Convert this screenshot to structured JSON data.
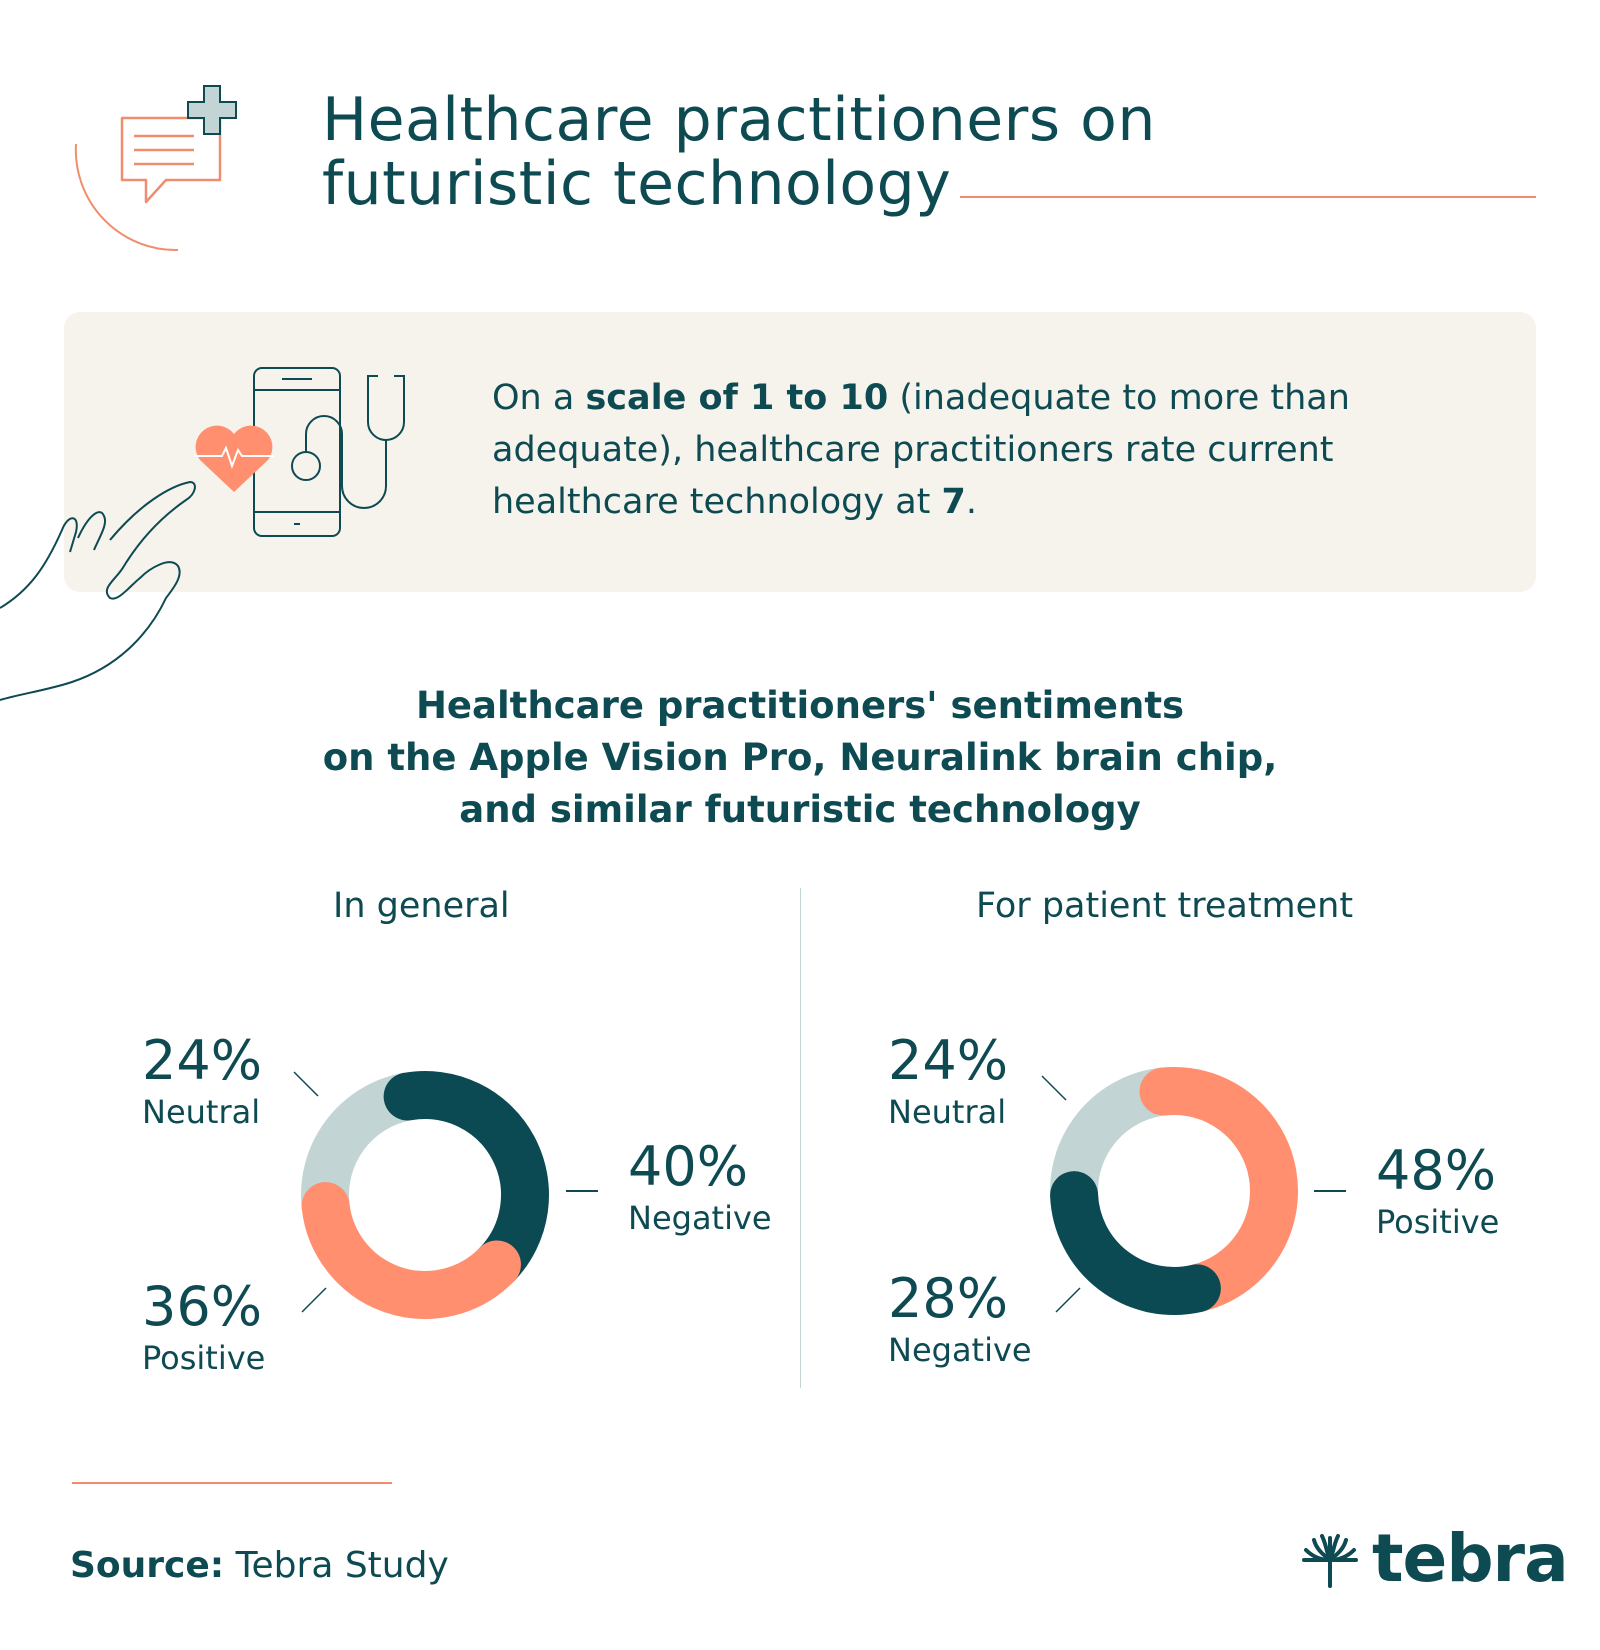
{
  "header": {
    "title_line1": "Healthcare practitioners on",
    "title_line2": "futuristic technology"
  },
  "callout": {
    "text_1": "On a ",
    "bold_1": "scale of 1 to 10",
    "text_2": " (inadequate to more than adequate), healthcare practitioners rate current healthcare technology at ",
    "bold_2": "7",
    "text_3": "."
  },
  "section": {
    "heading_line1": "Healthcare practitioners' sentiments",
    "heading_line2": "on the Apple Vision Pro, Neuralink brain chip,",
    "heading_line3": "and similar futuristic technology"
  },
  "colors": {
    "negative": "#0b4a52",
    "positive": "#ff8f6e",
    "neutral": "#c3d4d5",
    "text": "#0e4a52",
    "accent_rule": "#ef8d6e"
  },
  "chart_data": [
    {
      "type": "pie",
      "title": "In general",
      "slices": [
        {
          "label": "Negative",
          "value": 40,
          "display": "40%",
          "color": "#0b4a52"
        },
        {
          "label": "Positive",
          "value": 36,
          "display": "36%",
          "color": "#ff8f6e"
        },
        {
          "label": "Neutral",
          "value": 24,
          "display": "24%",
          "color": "#c3d4d5"
        }
      ]
    },
    {
      "type": "pie",
      "title": "For patient treatment",
      "slices": [
        {
          "label": "Positive",
          "value": 48,
          "display": "48%",
          "color": "#ff8f6e"
        },
        {
          "label": "Negative",
          "value": 28,
          "display": "28%",
          "color": "#0b4a52"
        },
        {
          "label": "Neutral",
          "value": 24,
          "display": "24%",
          "color": "#c3d4d5"
        }
      ]
    }
  ],
  "footer": {
    "source_label": "Source:",
    "source_value": " Tebra Study",
    "brand": "tebra"
  },
  "icons": [
    "chat-medical-icon",
    "phone-stethoscope-icon",
    "heart-pulse-icon",
    "hand-icon",
    "tebra-logo-icon"
  ]
}
